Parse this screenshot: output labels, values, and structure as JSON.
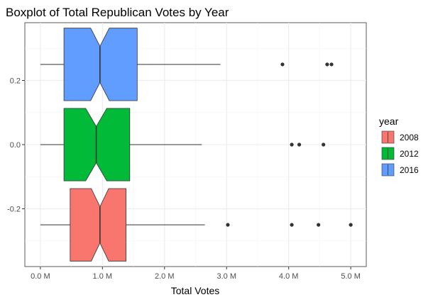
{
  "chart_data": {
    "type": "boxplot",
    "title": "Boxplot of Total Republican Votes by Year",
    "xlabel": "Total Votes",
    "ylabel": "",
    "notched": true,
    "orientation": "horizontal",
    "grid": true,
    "legend_position": "right",
    "xlim": [
      -0.25,
      5.25
    ],
    "ylim": [
      -0.38,
      0.38
    ],
    "x_ticks": [
      0,
      1,
      2,
      3,
      4,
      5
    ],
    "x_tick_labels": [
      "0.0 M",
      "1.0 M",
      "2.0 M",
      "3.0 M",
      "4.0 M",
      "5.0 M"
    ],
    "y_ticks": [
      0.2,
      0.0,
      -0.2
    ],
    "y_tick_labels": [
      "0.2",
      "0.0",
      "-0.2"
    ],
    "legend_title": "year",
    "box_half_height": 0.113,
    "series": [
      {
        "name": "2008",
        "color": "#F8766D",
        "y": -0.25,
        "whisker_low": 0.0,
        "q1": 0.48,
        "notch_low": 0.82,
        "median": 0.96,
        "notch_high": 1.1,
        "q3": 1.38,
        "whisker_high": 2.65,
        "outliers": [
          3.02,
          4.05,
          4.48,
          5.0
        ]
      },
      {
        "name": "2012",
        "color": "#00BA38",
        "y": 0.0,
        "whisker_low": 0.0,
        "q1": 0.38,
        "notch_low": 0.73,
        "median": 0.9,
        "notch_high": 1.07,
        "q3": 1.44,
        "whisker_high": 2.6,
        "outliers": [
          4.05,
          4.17,
          4.56
        ]
      },
      {
        "name": "2016",
        "color": "#619CFF",
        "y": 0.25,
        "whisker_low": 0.0,
        "q1": 0.38,
        "notch_low": 0.81,
        "median": 0.96,
        "notch_high": 1.11,
        "q3": 1.56,
        "whisker_high": 2.9,
        "outliers": [
          3.9,
          4.62,
          4.69
        ]
      }
    ],
    "legend_order": [
      "2008",
      "2012",
      "2016"
    ]
  }
}
